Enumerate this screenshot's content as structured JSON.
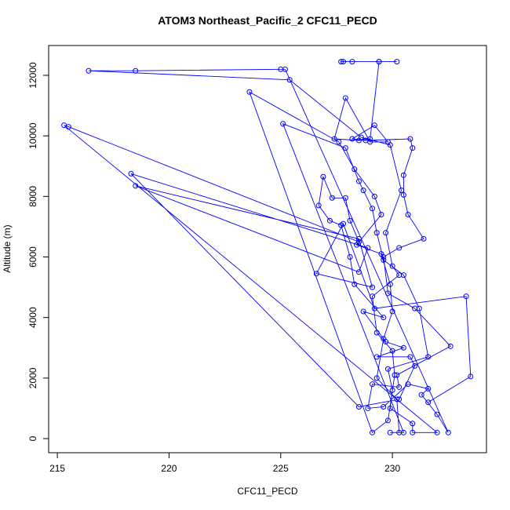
{
  "chart_data": {
    "type": "line",
    "title": "ATOM3 Northeast_Pacific_2 CFC11_PECD",
    "x_label": "CFC11_PECD",
    "y_label": "Altitude (m)",
    "color": "#0000ff",
    "markers": true,
    "x": [
      230.2,
      229.4,
      228.2,
      227.8,
      227.7,
      229.4,
      229.0,
      228.5,
      227.4,
      227.9,
      229.0,
      229.8,
      229.2,
      228.2,
      228.8,
      230.8,
      230.9,
      230.5,
      230.5,
      230.7,
      231.4,
      230.3,
      229.6,
      229.8,
      231.0,
      232.6,
      230.2,
      230.3,
      229.1,
      228.9,
      229.6,
      230.7,
      231.6,
      231.3,
      232.0,
      232.5,
      225.2,
      225.0,
      218.5,
      216.4,
      225.4,
      228.6,
      229.9,
      230.4,
      229.7,
      230.0,
      230.3,
      229.1,
      229.3,
      230.0,
      230.1,
      229.8,
      229.1,
      223.6,
      227.6,
      228.3,
      229.2,
      229.5,
      228.4,
      229.5,
      229.9,
      230.0,
      229.6,
      229.3,
      230.2,
      230.3,
      229.9,
      230.5,
      225.1,
      227.9,
      228.5,
      228.7,
      229.1,
      229.3,
      229.6,
      230.5,
      231.2,
      231.6,
      229.8,
      230.0,
      229.9,
      230.9,
      230.9,
      232.0,
      215.3,
      215.5,
      228.5,
      228.1,
      227.9,
      227.3,
      226.9,
      226.7,
      227.2,
      227.7,
      228.1,
      228.3,
      229.6,
      228.7,
      229.7,
      230.5,
      229.3,
      230.8,
      231.0,
      230.3,
      228.5,
      218.3,
      228.9,
      228.5,
      218.5,
      228.5,
      229.1,
      226.6,
      227.8,
      229.2,
      233.3,
      233.5,
      231.6
    ],
    "values": [
      12450,
      12450,
      12450,
      12450,
      12450,
      12450,
      9900,
      9850,
      9900,
      11250,
      9800,
      9800,
      10350,
      9900,
      9850,
      9900,
      9600,
      8700,
      8050,
      7400,
      6600,
      6300,
      6000,
      4800,
      4300,
      3050,
      2100,
      1700,
      1800,
      1000,
      1050,
      1800,
      1650,
      1450,
      800,
      200,
      12200,
      12200,
      12150,
      12150,
      11850,
      9950,
      9700,
      8200,
      6800,
      5700,
      5400,
      4700,
      3500,
      2900,
      2100,
      600,
      200,
      11450,
      9800,
      8900,
      8000,
      7400,
      6400,
      6100,
      5100,
      4200,
      3300,
      2000,
      1300,
      200,
      200,
      200,
      10400,
      9600,
      8500,
      8200,
      7600,
      6800,
      5900,
      5400,
      4300,
      2700,
      2300,
      1600,
      1000,
      500,
      200,
      200,
      10350,
      10300,
      6500,
      7200,
      7950,
      7950,
      8650,
      7700,
      7200,
      7050,
      6000,
      5100,
      4000,
      4200,
      3200,
      3000,
      2700,
      2700,
      2400,
      1300,
      1050,
      8750,
      6300,
      5500,
      8350,
      6600,
      5000,
      5450,
      7100,
      4300,
      4700,
      2050,
      1200
    ],
    "xlim": [
      214.61,
      234.21
    ],
    "ylim": [
      -466,
      12985
    ],
    "xticks": [
      215,
      220,
      225,
      230
    ],
    "yticks": [
      0,
      2000,
      4000,
      6000,
      8000,
      10000,
      12000
    ]
  }
}
